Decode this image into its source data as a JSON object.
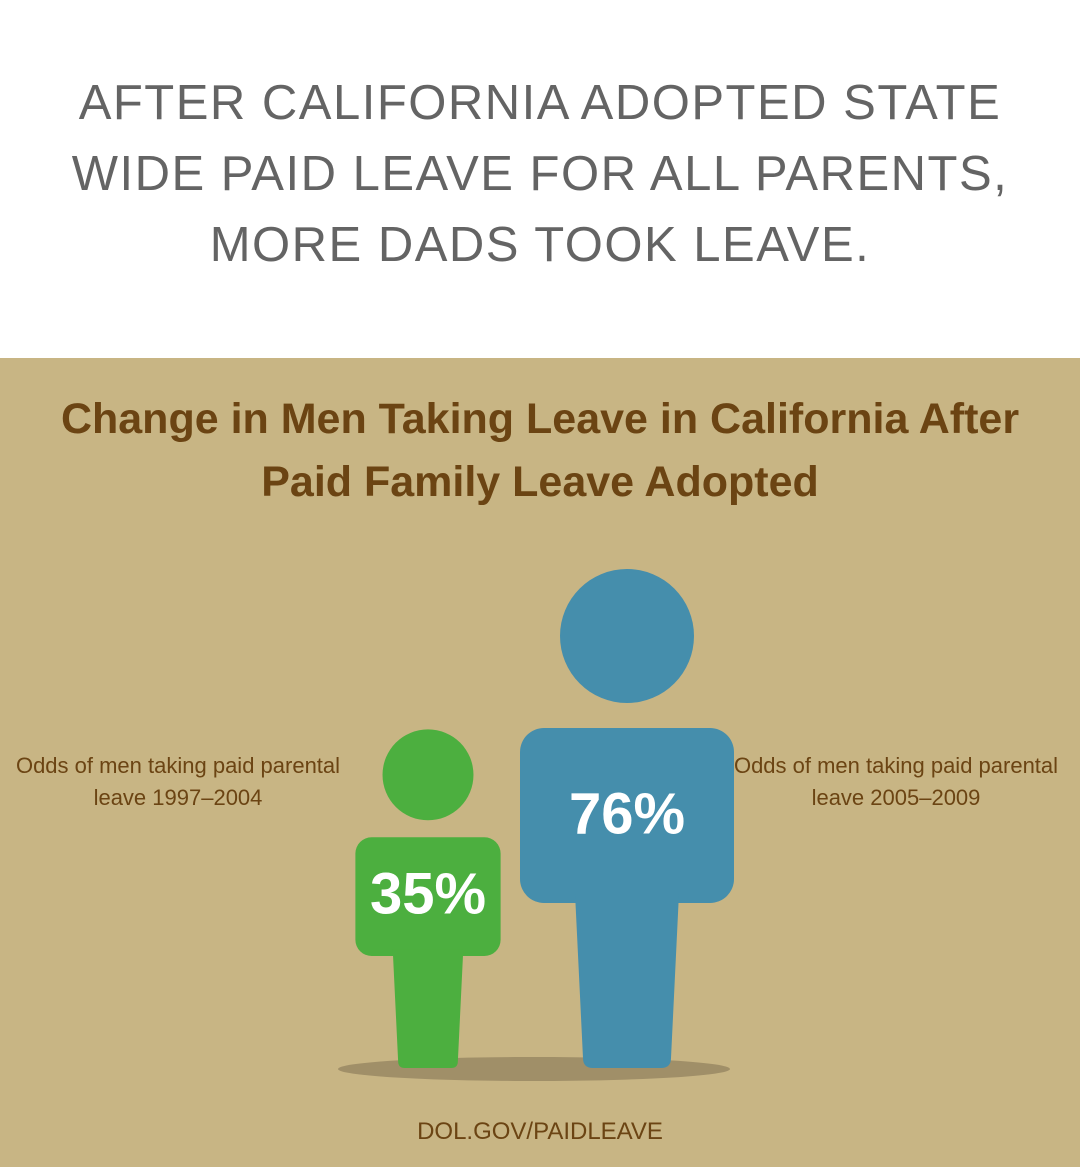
{
  "header": {
    "title": "AFTER CALIFORNIA ADOPTED STATE WIDE PAID LEAVE FOR ALL PARENTS, MORE DADS TOOK LEAVE."
  },
  "chart_data": {
    "type": "pictograph",
    "title": "Change in Men Taking Leave in California After Paid Family Leave Adopted",
    "categories": [
      "Odds of men taking paid parental leave 1997–2004",
      "Odds of men taking paid parental leave 2005–2009"
    ],
    "values": [
      35,
      76
    ],
    "value_labels": [
      "35%",
      "76%"
    ],
    "colors": [
      "#4caf3f",
      "#458eac"
    ],
    "source": "DOL.GOV/PAIDLEAVE"
  }
}
